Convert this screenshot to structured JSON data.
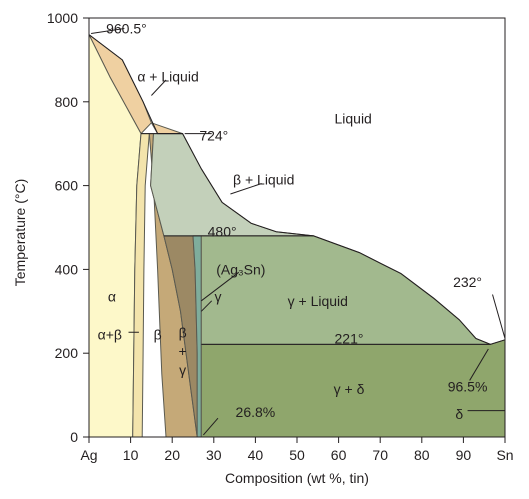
{
  "chart_data": {
    "type": "phase-diagram",
    "title": "",
    "xlabel": "Composition (wt %, tin)",
    "ylabel": "Temperature (°C)",
    "xlim": [
      0,
      100
    ],
    "ylim": [
      0,
      1000
    ],
    "x_ticks": [
      {
        "value": 0,
        "label": "Ag"
      },
      {
        "value": 10,
        "label": "10"
      },
      {
        "value": 20,
        "label": "20"
      },
      {
        "value": 30,
        "label": "30"
      },
      {
        "value": 40,
        "label": "40"
      },
      {
        "value": 50,
        "label": "50"
      },
      {
        "value": 60,
        "label": "60"
      },
      {
        "value": 70,
        "label": "70"
      },
      {
        "value": 80,
        "label": "80"
      },
      {
        "value": 90,
        "label": "90"
      },
      {
        "value": 100,
        "label": "Sn"
      }
    ],
    "y_ticks": [
      {
        "value": 0,
        "label": "0"
      },
      {
        "value": 200,
        "label": "200"
      },
      {
        "value": 400,
        "label": "400"
      },
      {
        "value": 600,
        "label": "600"
      },
      {
        "value": 800,
        "label": "800"
      },
      {
        "value": 1000,
        "label": "1000"
      }
    ],
    "regions": [
      {
        "id": "alpha-liquid",
        "color": "#efd0a1",
        "points": [
          [
            0,
            960.5
          ],
          [
            8,
            900
          ],
          [
            13,
            800
          ],
          [
            15,
            750
          ],
          [
            16.5,
            724
          ],
          [
            22.5,
            724
          ],
          [
            15,
            750
          ],
          [
            12.5,
            724
          ],
          [
            5,
            860
          ],
          [
            0,
            960.5
          ]
        ]
      },
      {
        "id": "alpha",
        "color": "#fdf8c9",
        "points": [
          [
            0,
            960.5
          ],
          [
            5,
            860
          ],
          [
            12.5,
            724
          ],
          [
            11.5,
            600
          ],
          [
            11,
            400
          ],
          [
            10.5,
            0
          ],
          [
            0,
            0
          ]
        ]
      },
      {
        "id": "alpha-beta",
        "color": "#f3e4ac",
        "points": [
          [
            12.5,
            724
          ],
          [
            14.5,
            724
          ],
          [
            13.5,
            600
          ],
          [
            13.2,
            400
          ],
          [
            13,
            200
          ],
          [
            12.8,
            0
          ],
          [
            10.5,
            0
          ],
          [
            11,
            400
          ],
          [
            11.5,
            600
          ]
        ]
      },
      {
        "id": "beta",
        "color": "#c5a978",
        "points": [
          [
            14.5,
            724
          ],
          [
            15.5,
            724
          ],
          [
            14.8,
            600
          ],
          [
            18,
            480
          ],
          [
            20,
            400
          ],
          [
            22,
            300
          ],
          [
            24,
            150
          ],
          [
            26,
            0
          ],
          [
            18.5,
            0
          ],
          [
            17.5,
            150
          ],
          [
            16.5,
            400
          ],
          [
            15.5,
            600
          ]
        ]
      },
      {
        "id": "beta-gamma",
        "color": "#9c8964",
        "points": [
          [
            18,
            480
          ],
          [
            25,
            480
          ],
          [
            25.5,
            400
          ],
          [
            26,
            200
          ],
          [
            26,
            0
          ],
          [
            26,
            0
          ],
          [
            24,
            150
          ],
          [
            22,
            300
          ],
          [
            20,
            400
          ]
        ]
      },
      {
        "id": "beta-liquid",
        "color": "#c3d0ba",
        "points": [
          [
            16.5,
            724
          ],
          [
            22.5,
            724
          ],
          [
            27,
            640
          ],
          [
            32,
            560
          ],
          [
            39,
            510
          ],
          [
            45,
            490
          ],
          [
            54,
            480
          ],
          [
            25,
            480
          ],
          [
            18,
            480
          ],
          [
            14.8,
            600
          ],
          [
            15.5,
            724
          ]
        ]
      },
      {
        "id": "gamma",
        "color": "#7fad9c",
        "points": [
          [
            25,
            480
          ],
          [
            27,
            480
          ],
          [
            27,
            0
          ],
          [
            26,
            0
          ],
          [
            26,
            200
          ],
          [
            25.5,
            400
          ]
        ]
      },
      {
        "id": "gamma-liquid",
        "color": "#a2b98e",
        "points": [
          [
            27,
            480
          ],
          [
            54,
            480
          ],
          [
            65,
            440
          ],
          [
            75,
            390
          ],
          [
            83,
            330
          ],
          [
            89,
            280
          ],
          [
            93,
            235
          ],
          [
            96.5,
            221
          ],
          [
            27,
            221
          ]
        ]
      },
      {
        "id": "gamma-delta",
        "color": "#8fa66c",
        "points": [
          [
            27,
            221
          ],
          [
            96.5,
            221
          ],
          [
            100,
            232
          ],
          [
            100,
            0
          ],
          [
            27,
            0
          ]
        ]
      }
    ],
    "liquidus": [
      [
        0,
        960.5
      ],
      [
        8,
        900
      ],
      [
        13,
        800
      ],
      [
        16.5,
        724
      ],
      [
        22.5,
        724
      ],
      [
        27,
        640
      ],
      [
        32,
        560
      ],
      [
        39,
        510
      ],
      [
        45,
        490
      ],
      [
        54,
        480
      ],
      [
        65,
        440
      ],
      [
        75,
        390
      ],
      [
        83,
        330
      ],
      [
        89,
        280
      ],
      [
        93,
        235
      ],
      [
        96.5,
        221
      ],
      [
        100,
        232
      ]
    ],
    "isotherms": [
      {
        "from": [
          12.5,
          724
        ],
        "to": [
          22.5,
          724
        ]
      },
      {
        "from": [
          18,
          480
        ],
        "to": [
          54,
          480
        ]
      },
      {
        "from": [
          27,
          221
        ],
        "to": [
          96.5,
          221
        ]
      }
    ],
    "annotations": [
      {
        "name": "label-960",
        "text": "960.5°",
        "x": 9,
        "y": 975,
        "leader": [
          [
            0.5,
            963
          ],
          [
            8.5,
            975
          ]
        ]
      },
      {
        "name": "label-alpha-liquid",
        "text": "α + Liquid",
        "x": 19,
        "y": 860,
        "leader": [
          [
            15,
            815
          ],
          [
            18.5,
            852
          ]
        ]
      },
      {
        "name": "label-liquid",
        "text": "Liquid",
        "x": 63.5,
        "y": 760
      },
      {
        "name": "label-724",
        "text": "724°",
        "x": 30,
        "y": 720,
        "leader": [
          [
            23,
            724
          ],
          [
            29.5,
            724
          ]
        ]
      },
      {
        "name": "label-beta-liquid",
        "text": "β + Liquid",
        "x": 42,
        "y": 615,
        "leader": [
          [
            34,
            580
          ],
          [
            41.5,
            605
          ]
        ]
      },
      {
        "name": "label-480",
        "text": "480°",
        "x": 32,
        "y": 490
      },
      {
        "name": "label-ag3sn",
        "text": "(Ag₃Sn)",
        "x": 36.5,
        "y": 400,
        "leader": [
          [
            27,
            325
          ],
          [
            36,
            393
          ]
        ]
      },
      {
        "name": "label-232",
        "text": "232°",
        "x": 91,
        "y": 370,
        "leader": [
          [
            97,
            340
          ],
          [
            100,
            235
          ]
        ]
      },
      {
        "name": "label-gamma-liquid",
        "text": "γ + Liquid",
        "x": 55,
        "y": 325
      },
      {
        "name": "label-alpha",
        "text": "α",
        "x": 5.5,
        "y": 335
      },
      {
        "name": "label-gamma",
        "text": "γ",
        "x": 31,
        "y": 335,
        "leader": [
          [
            27,
            300
          ],
          [
            29.5,
            325
          ]
        ]
      },
      {
        "name": "label-alpha-beta",
        "text": "α+β",
        "x": 5,
        "y": 245,
        "leader": [
          [
            9.5,
            250
          ],
          [
            12,
            250
          ]
        ]
      },
      {
        "name": "label-beta",
        "text": "β",
        "x": 16.5,
        "y": 245
      },
      {
        "name": "label-beta-gamma-b",
        "text": "β",
        "x": 22.5,
        "y": 250
      },
      {
        "name": "label-beta-gamma-plus",
        "text": "+",
        "x": 22.5,
        "y": 205
      },
      {
        "name": "label-beta-gamma-g",
        "text": "γ",
        "x": 22.5,
        "y": 160
      },
      {
        "name": "label-221",
        "text": "221°",
        "x": 62.5,
        "y": 235
      },
      {
        "name": "label-96-5",
        "text": "96.5%",
        "x": 91,
        "y": 120,
        "leader": [
          [
            91.5,
            135
          ],
          [
            96,
            210
          ]
        ]
      },
      {
        "name": "label-gamma-delta",
        "text": "γ + δ",
        "x": 62.5,
        "y": 115
      },
      {
        "name": "label-delta",
        "text": "δ",
        "x": 89,
        "y": 55,
        "leader": [
          [
            91,
            63
          ],
          [
            100,
            63
          ]
        ]
      },
      {
        "name": "label-26-8",
        "text": "26.8%",
        "x": 40,
        "y": 60,
        "leader": [
          [
            27.5,
            5
          ],
          [
            31,
            45
          ]
        ]
      }
    ]
  }
}
